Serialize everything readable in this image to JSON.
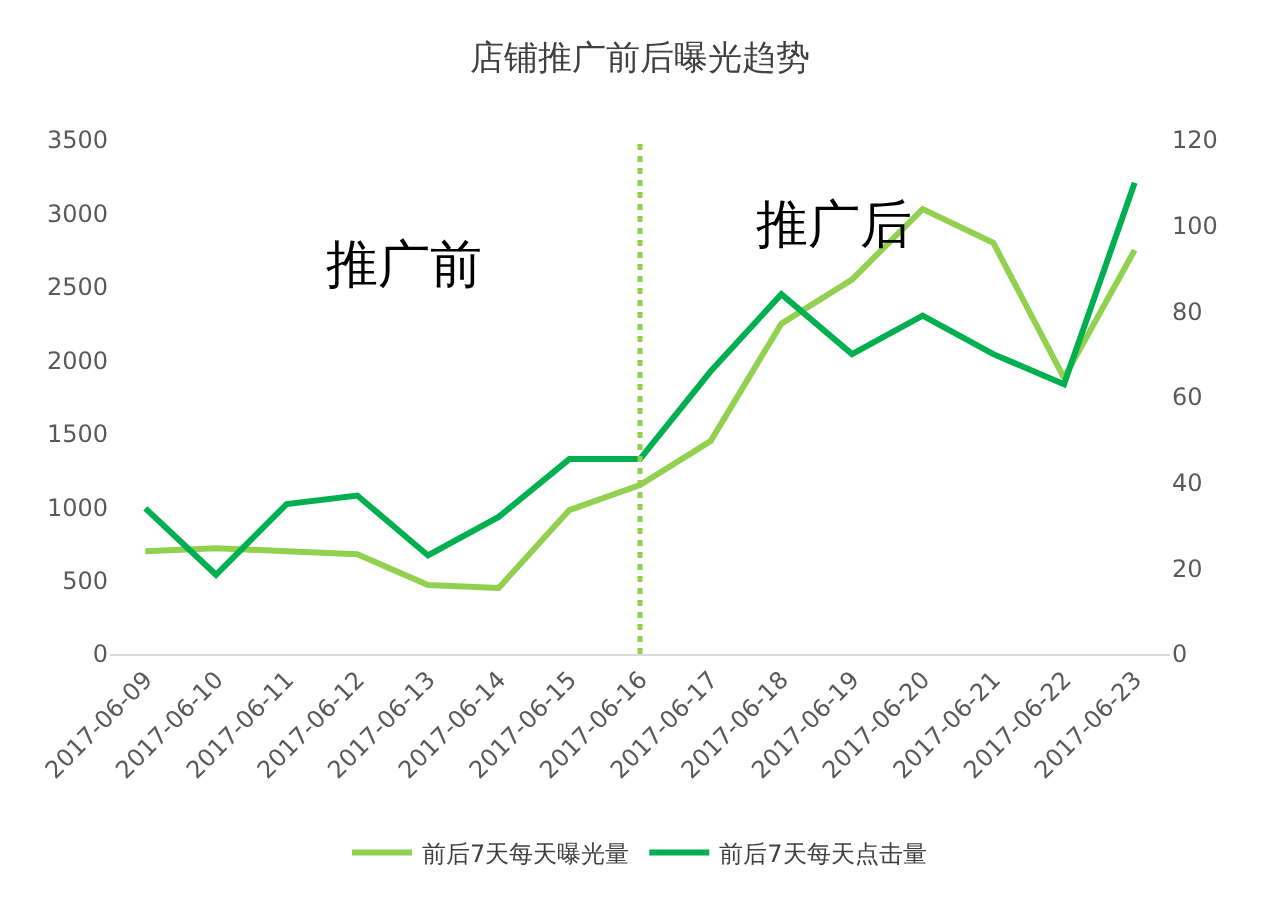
{
  "chart_data": {
    "type": "line",
    "title": "店铺推广前后曝光趋势",
    "categories": [
      "2017-06-09",
      "2017-06-10",
      "2017-06-11",
      "2017-06-12",
      "2017-06-13",
      "2017-06-14",
      "2017-06-15",
      "2017-06-16",
      "2017-06-17",
      "2017-06-18",
      "2017-06-19",
      "2017-06-20",
      "2017-06-21",
      "2017-06-22",
      "2017-06-23"
    ],
    "series": [
      {
        "name": "前后7天每天曝光量",
        "color": "#92d050",
        "values": [
          700,
          720,
          700,
          680,
          470,
          450,
          980,
          1150,
          1450,
          2250,
          2550,
          3030,
          2800,
          1880,
          2750
        ]
      },
      {
        "name": "前后7天每天点击量",
        "color": "#00b050",
        "axis": "y2",
        "values": [
          34,
          18.5,
          35,
          37,
          23,
          32,
          45.5,
          45.5,
          66,
          84,
          70,
          79,
          70,
          63,
          110
        ]
      }
    ],
    "ylim": [
      0,
      3500
    ],
    "yticks": [
      0,
      500,
      1000,
      1500,
      2000,
      2500,
      3000,
      3500
    ],
    "y2lim": [
      0,
      120
    ],
    "y2ticks": [
      0,
      20,
      40,
      60,
      80,
      100,
      120
    ],
    "ref_lines": [
      {
        "axis": "x",
        "value": "2017-06-16",
        "color": "#92d050",
        "line_style": "dotted"
      }
    ],
    "annotations": [
      "推广前",
      "推广后"
    ],
    "legend": "bottom",
    "marker": "none",
    "line_style": "solid"
  }
}
